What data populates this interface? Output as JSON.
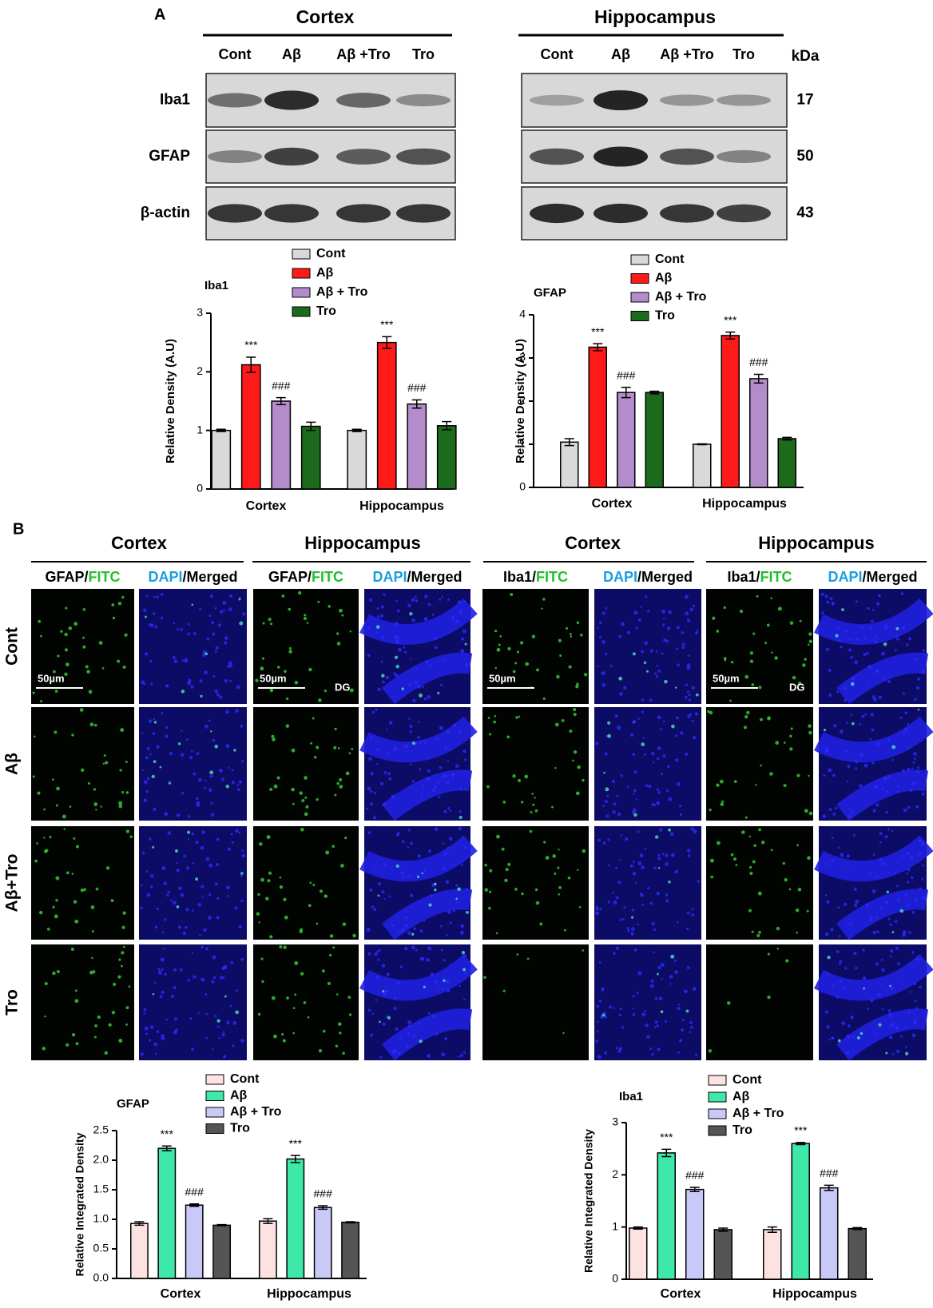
{
  "panel_a": {
    "label": "A",
    "regions": [
      "Cortex",
      "Hippocampus"
    ],
    "lanes": [
      "Cont",
      "Aβ",
      "Aβ +Tro",
      "Tro"
    ],
    "unit": "kDa",
    "proteins": [
      "Iba1",
      "GFAP",
      "β-actin"
    ],
    "kda": [
      17,
      50,
      43
    ]
  },
  "panel_b": {
    "label": "B",
    "group_titles": [
      "Cortex",
      "Hippocampus",
      "Cortex",
      "Hippocampus"
    ],
    "columns": [
      [
        "GFAP/",
        "FITC"
      ],
      [
        "DAPI",
        "/Merged"
      ],
      [
        "GFAP/",
        "FITC"
      ],
      [
        "DAPI",
        "/Merged"
      ],
      [
        "Iba1/",
        "FITC"
      ],
      [
        "DAPI",
        "/Merged"
      ],
      [
        "Iba1/",
        "FITC"
      ],
      [
        "DAPI",
        "/Merged"
      ]
    ],
    "rows": [
      "Cont",
      "Aβ",
      "Aβ+Tro",
      "Tro"
    ],
    "scale_bar": "50µm",
    "region": "DG"
  },
  "chart_data": [
    {
      "type": "bar",
      "title": "Iba1",
      "y_label": "Relative Density (A.U)",
      "categories": [
        "Cortex",
        "Hippocampus"
      ],
      "series": [
        {
          "name": "Cont",
          "color": "#d9d9d9",
          "values": [
            1.0,
            1.0
          ],
          "errors": [
            0.02,
            0.02
          ]
        },
        {
          "name": "Aβ",
          "color": "#ff1a1a",
          "values": [
            2.12,
            2.5
          ],
          "errors": [
            0.13,
            0.1
          ],
          "sig": [
            "***",
            "***"
          ]
        },
        {
          "name": "Aβ + Tro",
          "color": "#b48ccb",
          "values": [
            1.5,
            1.45
          ],
          "errors": [
            0.06,
            0.07
          ],
          "sig": [
            "###",
            "###"
          ]
        },
        {
          "name": "Tro",
          "color": "#1c6b1c",
          "values": [
            1.07,
            1.08
          ],
          "errors": [
            0.07,
            0.07
          ]
        }
      ],
      "ylim": [
        0,
        3
      ],
      "yticks": [
        0,
        1,
        2,
        3
      ]
    },
    {
      "type": "bar",
      "title": "GFAP",
      "y_label": "Relative Density (A.U)",
      "categories": [
        "Cortex",
        "Hippocampus"
      ],
      "series": [
        {
          "name": "Cont",
          "color": "#d9d9d9",
          "values": [
            1.05,
            1.0
          ],
          "errors": [
            0.08,
            0.01
          ]
        },
        {
          "name": "Aβ",
          "color": "#ff1a1a",
          "values": [
            3.25,
            3.52
          ],
          "errors": [
            0.08,
            0.08
          ],
          "sig": [
            "***",
            "***"
          ]
        },
        {
          "name": "Aβ + Tro",
          "color": "#b48ccb",
          "values": [
            2.2,
            2.52
          ],
          "errors": [
            0.12,
            0.1
          ],
          "sig": [
            "###",
            "###"
          ]
        },
        {
          "name": "Tro",
          "color": "#1c6b1c",
          "values": [
            2.2,
            1.13
          ],
          "errors": [
            0.03,
            0.03
          ]
        }
      ],
      "ylim": [
        0,
        4
      ],
      "yticks": [
        0,
        1,
        2,
        3,
        4
      ]
    },
    {
      "type": "bar",
      "title": "GFAP",
      "y_label": "Relative Integrated Density",
      "categories": [
        "Cortex",
        "Hippocampus"
      ],
      "series": [
        {
          "name": "Cont",
          "color": "#fde2e2",
          "values": [
            0.93,
            0.97
          ],
          "errors": [
            0.03,
            0.04
          ]
        },
        {
          "name": "Aβ",
          "color": "#3ee8a8",
          "values": [
            2.2,
            2.02
          ],
          "errors": [
            0.04,
            0.06
          ],
          "sig": [
            "***",
            "***"
          ]
        },
        {
          "name": "Aβ + Tro",
          "color": "#c9c9f7",
          "values": [
            1.24,
            1.2
          ],
          "errors": [
            0.02,
            0.03
          ],
          "sig": [
            "###",
            "###"
          ]
        },
        {
          "name": "Tro",
          "color": "#555555",
          "values": [
            0.9,
            0.95
          ],
          "errors": [
            0.01,
            0.01
          ]
        }
      ],
      "ylim": [
        0,
        2.5
      ],
      "yticks": [
        {
          "value": 0,
          "label": "0.0"
        },
        0.5,
        {
          "value": 1,
          "label": "1.0"
        },
        1.5,
        {
          "value": 2,
          "label": "2.0"
        },
        2.5
      ]
    },
    {
      "type": "bar",
      "title": "Iba1",
      "y_label": "Relative Integrated Density",
      "categories": [
        "Cortex",
        "Hippocampus"
      ],
      "series": [
        {
          "name": "Cont",
          "color": "#fde2e2",
          "values": [
            0.98,
            0.95
          ],
          "errors": [
            0.02,
            0.05
          ]
        },
        {
          "name": "Aβ",
          "color": "#3ee8a8",
          "values": [
            2.42,
            2.6
          ],
          "errors": [
            0.07,
            0.02
          ],
          "sig": [
            "***",
            "***"
          ]
        },
        {
          "name": "Aβ + Tro",
          "color": "#c9c9f7",
          "values": [
            1.72,
            1.75
          ],
          "errors": [
            0.04,
            0.05
          ],
          "sig": [
            "###",
            "###"
          ]
        },
        {
          "name": "Tro",
          "color": "#555555",
          "values": [
            0.95,
            0.97
          ],
          "errors": [
            0.03,
            0.02
          ]
        }
      ],
      "ylim": [
        0,
        3
      ],
      "yticks": [
        0,
        1,
        2,
        3
      ]
    }
  ]
}
